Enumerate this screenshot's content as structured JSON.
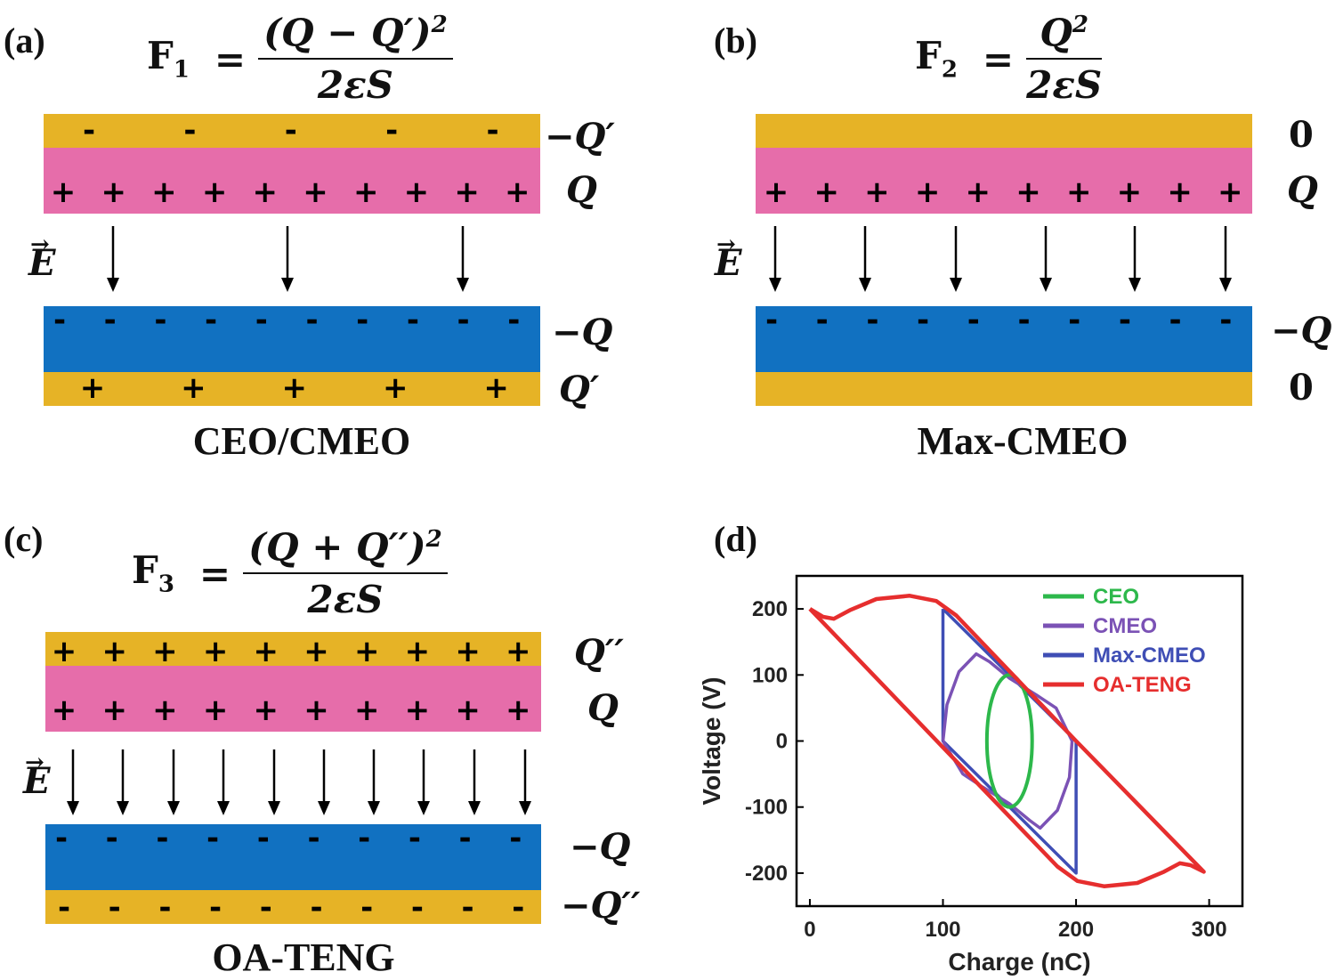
{
  "panel_a": {
    "label": "(a)",
    "formula": {
      "lhs": "F",
      "sub": "1",
      "numerator": "(Q − Q′)",
      "num_exp": "2",
      "denominator": "2εS"
    },
    "labels": {
      "top_gold": "−Q′",
      "pink": "Q",
      "blue": "−Q",
      "bottom_gold": "Q′"
    },
    "field": "E",
    "caption": "CEO/CMEO"
  },
  "panel_b": {
    "label": "(b)",
    "formula": {
      "lhs": "F",
      "sub": "2",
      "numerator": "Q",
      "num_exp": "2",
      "denominator": "2εS"
    },
    "labels": {
      "top_gold": "0",
      "pink": "Q",
      "blue": "−Q",
      "bottom_gold": "0"
    },
    "field": "E",
    "caption": "Max-CMEO"
  },
  "panel_c": {
    "label": "(c)",
    "formula": {
      "lhs": "F",
      "sub": "3",
      "numerator": "(Q + Q′′)",
      "num_exp": "2",
      "denominator": "2εS"
    },
    "labels": {
      "top_gold": "Q′′",
      "pink": "Q",
      "blue": "−Q",
      "bottom_gold": "−Q′′"
    },
    "field": "E",
    "caption": "OA-TENG"
  },
  "panel_d": {
    "label": "(d)"
  },
  "colors": {
    "gold": "#E6B326",
    "pink": "#E66DAA",
    "blue": "#1171C1"
  },
  "chart_data": {
    "type": "line",
    "xlabel": "Charge (nC)",
    "ylabel": "Voltage (V)",
    "xlim": [
      -10,
      325
    ],
    "ylim": [
      -250,
      250
    ],
    "xticks": [
      0,
      100,
      200,
      300
    ],
    "yticks": [
      200,
      100,
      0,
      -100,
      -200
    ],
    "legend_position": "top-right",
    "series": [
      {
        "name": "CEO",
        "color": "#2DB84B",
        "shape": "ellipse",
        "center": [
          150,
          0
        ],
        "radius": [
          17,
          100
        ]
      },
      {
        "name": "CMEO",
        "color": "#7B52B5",
        "points": [
          [
            100,
            0
          ],
          [
            103,
            55
          ],
          [
            112,
            105
          ],
          [
            125,
            132
          ],
          [
            135,
            120
          ],
          [
            150,
            95
          ],
          [
            170,
            70
          ],
          [
            185,
            50
          ],
          [
            197,
            0
          ],
          [
            195,
            -55
          ],
          [
            186,
            -105
          ],
          [
            173,
            -132
          ],
          [
            165,
            -120
          ],
          [
            150,
            -95
          ],
          [
            130,
            -70
          ],
          [
            115,
            -50
          ],
          [
            100,
            0
          ]
        ]
      },
      {
        "name": "Max-CMEO",
        "color": "#3F4EB5",
        "points": [
          [
            100,
            200
          ],
          [
            200,
            0
          ],
          [
            200,
            -200
          ],
          [
            100,
            0
          ],
          [
            100,
            200
          ]
        ]
      },
      {
        "name": "OA-TENG",
        "color": "#E62E2E",
        "points": [
          [
            0,
            200
          ],
          [
            10,
            188
          ],
          [
            18,
            185
          ],
          [
            30,
            198
          ],
          [
            50,
            215
          ],
          [
            75,
            220
          ],
          [
            95,
            212
          ],
          [
            110,
            190
          ],
          [
            200,
            0
          ],
          [
            296,
            -198
          ],
          [
            286,
            -188
          ],
          [
            278,
            -185
          ],
          [
            266,
            -198
          ],
          [
            246,
            -215
          ],
          [
            221,
            -220
          ],
          [
            201,
            -212
          ],
          [
            186,
            -190
          ],
          [
            0,
            200
          ]
        ]
      }
    ]
  }
}
